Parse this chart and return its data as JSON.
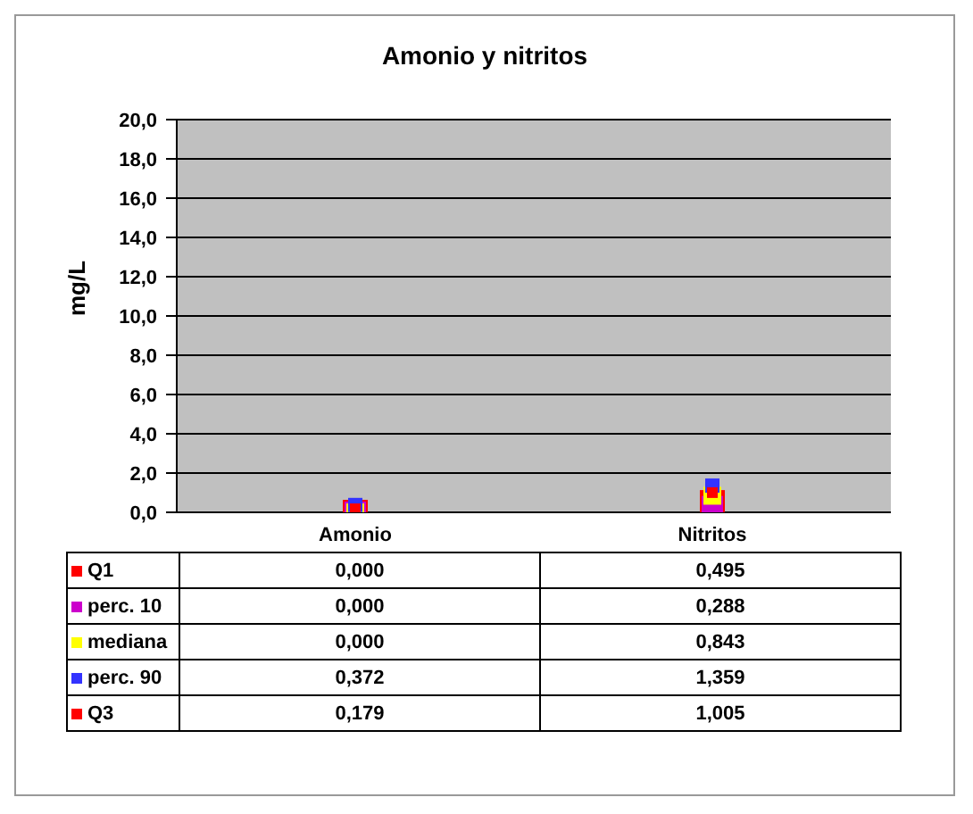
{
  "chart_data": {
    "type": "scatter",
    "title": "Amonio y nitritos",
    "ylabel": "mg/L",
    "categories": [
      "Amonio",
      "Nitritos"
    ],
    "series": [
      {
        "name": "Q1",
        "color": "#ff0000",
        "values": [
          0.0,
          0.495
        ],
        "value_labels": [
          "0,000",
          "0,495"
        ]
      },
      {
        "name": "perc. 10",
        "color": "#cc00cc",
        "values": [
          0.0,
          0.288
        ],
        "value_labels": [
          "0,000",
          "0,288"
        ]
      },
      {
        "name": "mediana",
        "color": "#ffff00",
        "values": [
          0.0,
          0.843
        ],
        "value_labels": [
          "0,000",
          "0,843"
        ]
      },
      {
        "name": "perc. 90",
        "color": "#3333ff",
        "values": [
          0.372,
          1.359
        ],
        "value_labels": [
          "0,372",
          "1,359"
        ]
      },
      {
        "name": "Q3",
        "color": "#ff0000",
        "values": [
          0.179,
          1.005
        ],
        "value_labels": [
          "0,179",
          "1,005"
        ]
      }
    ],
    "ylim": [
      0,
      20
    ],
    "yticks": [
      {
        "value": 0,
        "label": "0,0"
      },
      {
        "value": 2,
        "label": "2,0"
      },
      {
        "value": 4,
        "label": "4,0"
      },
      {
        "value": 6,
        "label": "6,0"
      },
      {
        "value": 8,
        "label": "8,0"
      },
      {
        "value": 10,
        "label": "10,0"
      },
      {
        "value": 12,
        "label": "12,0"
      },
      {
        "value": 14,
        "label": "14,0"
      },
      {
        "value": 16,
        "label": "16,0"
      },
      {
        "value": 18,
        "label": "18,0"
      },
      {
        "value": 20,
        "label": "20,0"
      }
    ],
    "grid": "y",
    "legend": "bottom",
    "marker": "square"
  }
}
